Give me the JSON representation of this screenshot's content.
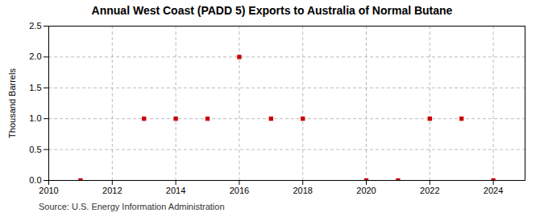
{
  "chart_data": {
    "type": "scatter",
    "title": "Annual West Coast (PADD 5) Exports to Australia of Normal Butane",
    "ylabel": "Thousand Barrels",
    "annotations": [
      "Source: U.S. Energy Information Administration"
    ],
    "x": [
      2011,
      2013,
      2014,
      2015,
      2016,
      2017,
      2018,
      2020,
      2021,
      2022,
      2023,
      2024
    ],
    "values": [
      0.0,
      1.0,
      1.0,
      1.0,
      2.0,
      1.0,
      1.0,
      0.0,
      0.0,
      1.0,
      1.0,
      0.0
    ],
    "color": "#cc0000",
    "marker": "square",
    "xlim": [
      2010,
      2025
    ],
    "xticks": [
      2010,
      2012,
      2014,
      2016,
      2018,
      2020,
      2022,
      2024
    ],
    "ylim": [
      0.0,
      2.5
    ],
    "yticks": [
      {
        "value": 0.0,
        "label": "0.0"
      },
      0.5,
      {
        "value": 1.0,
        "label": "1.0"
      },
      1.5,
      {
        "value": 2.0,
        "label": "2.0"
      },
      2.5
    ],
    "grid": true
  }
}
